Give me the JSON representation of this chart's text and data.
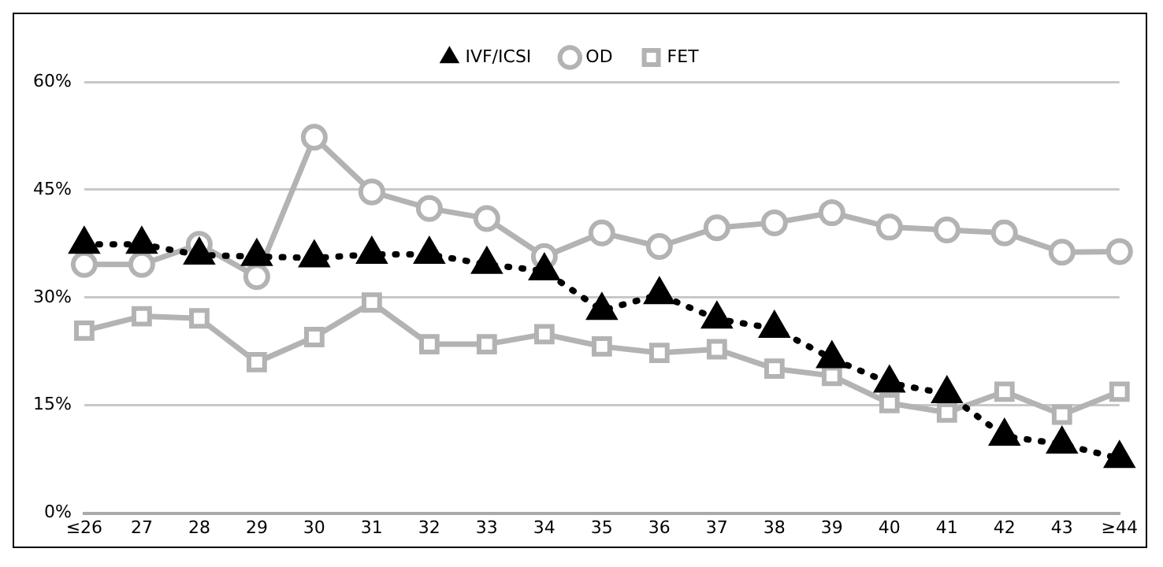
{
  "chart_data": {
    "type": "line",
    "categories": [
      "≤26",
      "27",
      "28",
      "29",
      "30",
      "31",
      "32",
      "33",
      "34",
      "35",
      "36",
      "37",
      "38",
      "39",
      "40",
      "41",
      "42",
      "43",
      "≥44"
    ],
    "series": [
      {
        "name": "IVF/ICSI",
        "color": "#000000",
        "marker": "triangle",
        "line_style": "dotted",
        "values": [
          37.4,
          37.4,
          35.9,
          35.7,
          35.5,
          36,
          36,
          34.6,
          33.7,
          28.2,
          30.4,
          27,
          25.7,
          21.5,
          18.1,
          16.6,
          10.7,
          9.6,
          7.6
        ]
      },
      {
        "name": "OD",
        "color": "#b3b3b3",
        "marker": "circle",
        "line_style": "solid",
        "values": [
          34.6,
          34.6,
          37.4,
          32.9,
          52.3,
          44.7,
          42.4,
          41,
          35.7,
          39,
          37.1,
          39.7,
          40.4,
          41.8,
          39.8,
          39.4,
          39,
          36.3,
          36.4
        ]
      },
      {
        "name": "FET",
        "color": "#b3b3b3",
        "marker": "square",
        "line_style": "solid",
        "values": [
          25.4,
          27.4,
          27.1,
          21,
          24.5,
          29.3,
          23.5,
          23.5,
          24.9,
          23.2,
          22.3,
          22.8,
          20.1,
          19.1,
          15.3,
          14,
          16.9,
          13.7,
          16.9
        ]
      }
    ],
    "ylim": [
      0,
      60
    ],
    "yticks": [
      {
        "value": 0,
        "label": "0%"
      },
      {
        "value": 15,
        "label": "15%"
      },
      {
        "value": 30,
        "label": "30%"
      },
      {
        "value": 45,
        "label": "45%"
      },
      {
        "value": 60,
        "label": "60%"
      }
    ],
    "grid": "y",
    "legend": "top"
  }
}
